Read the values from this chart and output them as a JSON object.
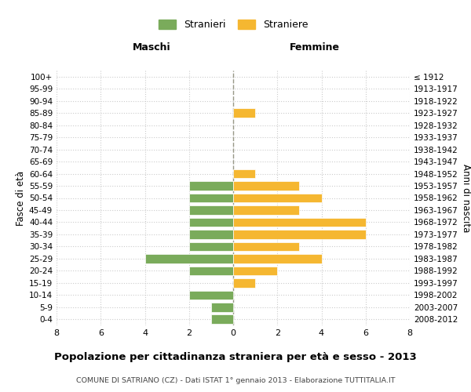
{
  "age_groups": [
    "100+",
    "95-99",
    "90-94",
    "85-89",
    "80-84",
    "75-79",
    "70-74",
    "65-69",
    "60-64",
    "55-59",
    "50-54",
    "45-49",
    "40-44",
    "35-39",
    "30-34",
    "25-29",
    "20-24",
    "15-19",
    "10-14",
    "5-9",
    "0-4"
  ],
  "birth_years": [
    "≤ 1912",
    "1913-1917",
    "1918-1922",
    "1923-1927",
    "1928-1932",
    "1933-1937",
    "1938-1942",
    "1943-1947",
    "1948-1952",
    "1953-1957",
    "1958-1962",
    "1963-1967",
    "1968-1972",
    "1973-1977",
    "1978-1982",
    "1983-1987",
    "1988-1992",
    "1993-1997",
    "1998-2002",
    "2003-2007",
    "2008-2012"
  ],
  "maschi": [
    0,
    0,
    0,
    0,
    0,
    0,
    0,
    0,
    0,
    2,
    2,
    2,
    2,
    2,
    2,
    4,
    2,
    0,
    2,
    1,
    1
  ],
  "femmine": [
    0,
    0,
    0,
    1,
    0,
    0,
    0,
    0,
    1,
    3,
    4,
    3,
    6,
    6,
    3,
    4,
    2,
    1,
    0,
    0,
    0
  ],
  "maschi_color": "#7aab5b",
  "femmine_color": "#f5b731",
  "background_color": "#ffffff",
  "grid_color": "#cccccc",
  "title": "Popolazione per cittadinanza straniera per età e sesso - 2013",
  "subtitle": "COMUNE DI SATRIANO (CZ) - Dati ISTAT 1° gennaio 2013 - Elaborazione TUTTITALIA.IT",
  "ylabel_left": "Fasce di età",
  "ylabel_right": "Anni di nascita",
  "header_left": "Maschi",
  "header_right": "Femmine",
  "legend_stranieri": "Stranieri",
  "legend_straniere": "Straniere",
  "xlim": 8,
  "bar_height": 0.75
}
